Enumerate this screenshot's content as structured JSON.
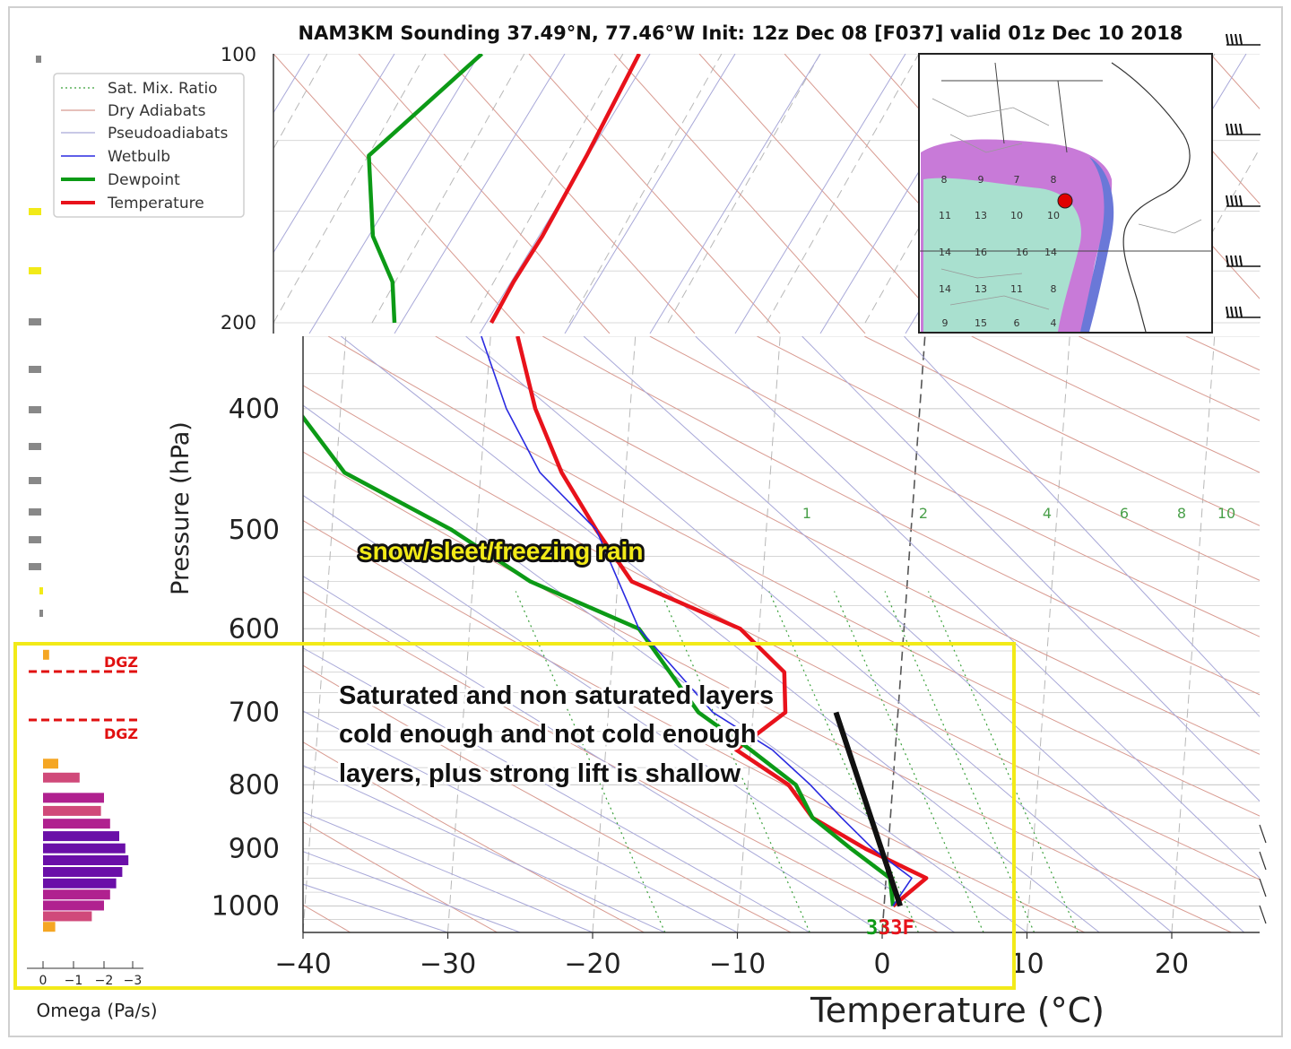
{
  "title": "NAM3KM Sounding 37.49°N, 77.46°W Init: 12z Dec 08 [F037] valid 01z Dec 10 2018",
  "colors": {
    "temperature": "#e8121b",
    "dewpoint": "#0c9a16",
    "wetbulb": "#2a2ae0",
    "dry_adiabat": "#d89a90",
    "pseudoadiabat": "#a8a8d8",
    "mixratio": "#3aa03a",
    "highlight_box": "#f2ea18",
    "dgz": "#e11010"
  },
  "legend": {
    "sat_mix": "Sat. Mix. Ratio",
    "dry": "Dry Adiabats",
    "pseudo": "Pseudoadiabats",
    "wetbulb": "Wetbulb",
    "dewpoint": "Dewpoint",
    "temperature": "Temperature"
  },
  "axes": {
    "ylabel": "Pressure (hPa)",
    "xlabel": "Temperature (°C)",
    "x_ticks": [
      "−40",
      "−30",
      "−20",
      "−10",
      "0",
      "10",
      "20"
    ],
    "y_ticks_upper": [
      "100",
      "200"
    ],
    "y_ticks_lower": [
      "400",
      "500",
      "600",
      "700",
      "800",
      "900",
      "1000"
    ],
    "mixratio_labels": [
      "1",
      "2",
      "4",
      "6",
      "8",
      "10"
    ]
  },
  "omega": {
    "label": "Omega (Pa/s)",
    "ticks": [
      "0",
      "−1",
      "−2",
      "−3"
    ],
    "dgz": "DGZ"
  },
  "annotations": {
    "precip_type": "snow/sleet/freezing rain",
    "line1": "Saturated and non saturated layers",
    "line2": "cold enough and not cold enough",
    "line3": "layers, plus strong lift is shallow",
    "surface_dew": "33",
    "surface_temp": "33F"
  },
  "inset_map": {
    "numbers": [
      "8",
      "9",
      "7",
      "8",
      "11",
      "13",
      "10",
      "10",
      "14",
      "16",
      "16",
      "14",
      "14",
      "13",
      "11",
      "8",
      "9",
      "15",
      "6",
      "4"
    ]
  },
  "chart_data": {
    "type": "line",
    "title": "NAM3KM Sounding 37.49°N, 77.46°W Init: 12z Dec 08 [F037] valid 01z Dec 10 2018",
    "xlabel": "Temperature (°C)",
    "ylabel": "Pressure (hPa)",
    "xlim": [
      -40,
      25
    ],
    "ylim_lower": [
      1050,
      350
    ],
    "ylim_upper": [
      200,
      100
    ],
    "y_scale": "log",
    "skewed": true,
    "legend_position": "top-left",
    "series": [
      {
        "name": "Temperature",
        "points_upper": [
          [
            -52,
            100
          ],
          [
            -55.5,
            130
          ],
          [
            -58.5,
            160
          ],
          [
            -60.5,
            180
          ],
          [
            -62,
            200
          ]
        ],
        "points_lower": [
          [
            -31.5,
            350
          ],
          [
            -29.5,
            400
          ],
          [
            -27,
            450
          ],
          [
            -24,
            500
          ],
          [
            -21,
            550
          ],
          [
            -13,
            600
          ],
          [
            -9.5,
            650
          ],
          [
            -9,
            700
          ],
          [
            -12,
            750
          ],
          [
            -8,
            800
          ],
          [
            -6,
            850
          ],
          [
            -2,
            900
          ],
          [
            2.5,
            950
          ],
          [
            0.5,
            1000
          ]
        ]
      },
      {
        "name": "Dewpoint",
        "points_upper": [
          [
            -65,
            100
          ],
          [
            -73.5,
            130
          ],
          [
            -72.5,
            160
          ],
          [
            -70.5,
            180
          ],
          [
            -70,
            200
          ]
        ],
        "points_lower": [
          [
            -64,
            350
          ],
          [
            -46,
            400
          ],
          [
            -42,
            450
          ],
          [
            -34,
            500
          ],
          [
            -28,
            550
          ],
          [
            -20,
            600
          ],
          [
            -15,
            700
          ],
          [
            -11,
            750
          ],
          [
            -7.5,
            800
          ],
          [
            -6,
            850
          ],
          [
            -3,
            900
          ],
          [
            0,
            950
          ],
          [
            0.5,
            1000
          ]
        ]
      },
      {
        "name": "Wetbulb",
        "points_lower": [
          [
            -34,
            350
          ],
          [
            -31.5,
            400
          ],
          [
            -28.5,
            450
          ],
          [
            -24,
            500
          ],
          [
            -20,
            600
          ],
          [
            -14,
            700
          ],
          [
            -9.5,
            750
          ],
          [
            -6.5,
            800
          ],
          [
            -4,
            850
          ],
          [
            -1.5,
            900
          ],
          [
            1.5,
            950
          ],
          [
            0.5,
            1000
          ]
        ]
      }
    ],
    "omega_profile": {
      "xlabel": "Omega (Pa/s)",
      "xlim": [
        0.5,
        -3.5
      ],
      "pressure": [
        630,
        770,
        790,
        820,
        840,
        860,
        880,
        900,
        920,
        940,
        960,
        980,
        1000,
        1020,
        1040
      ],
      "values": [
        -0.2,
        -0.5,
        -1.2,
        -2.0,
        -1.9,
        -2.2,
        -2.5,
        -2.7,
        -2.8,
        -2.6,
        -2.4,
        -2.2,
        -2.0,
        -1.6,
        -0.4
      ]
    }
  }
}
